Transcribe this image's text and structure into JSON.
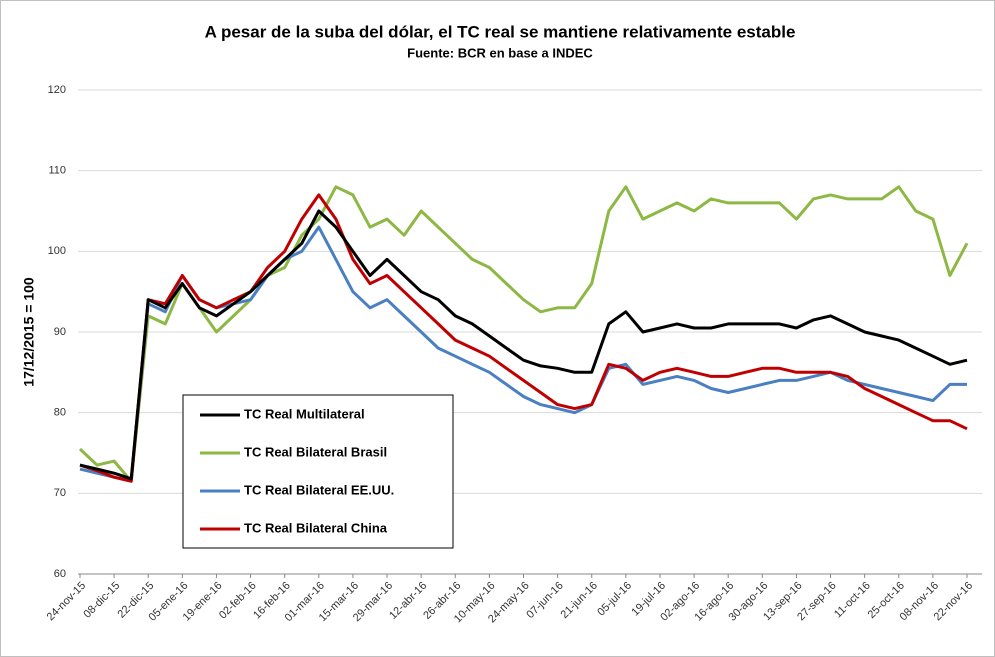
{
  "chart_data": {
    "type": "line",
    "title": "A pesar de la suba del dólar, el TC real se mantiene relativamente estable",
    "subtitle": "Fuente: BCR en base a INDEC",
    "y_label": "17/12/2015 = 100",
    "categories": [
      "24-nov-15",
      null,
      "08-dic-15",
      null,
      "22-dic-15",
      null,
      "05-ene-16",
      null,
      "19-ene-16",
      null,
      "02-feb-16",
      null,
      "16-feb-16",
      null,
      "01-mar-16",
      null,
      "15-mar-16",
      null,
      "29-mar-16",
      null,
      "12-abr-16",
      null,
      "26-abr-16",
      null,
      "10-may-16",
      null,
      "24-may-16",
      null,
      "07-jun-16",
      null,
      "21-jun-16",
      null,
      "05-jul-16",
      null,
      "19-jul-16",
      null,
      "02-ago-16",
      null,
      "16-ago-16",
      null,
      "30-ago-16",
      null,
      "13-sep-16",
      null,
      "27-sep-16",
      null,
      "11-oct-16",
      null,
      "25-oct-16",
      null,
      "08-nov-16",
      null,
      "22-nov-16"
    ],
    "series": [
      {
        "name": "TC Real Multilateral",
        "color": "#000000",
        "values": [
          73.5,
          73,
          72.5,
          71.8,
          94,
          93,
          96,
          93,
          92,
          93.5,
          95,
          97,
          99,
          101,
          105,
          103,
          100,
          97,
          99,
          97,
          95,
          94,
          92,
          91,
          89.5,
          88,
          86.5,
          85.8,
          85.5,
          85,
          85,
          91,
          92.5,
          90,
          90.5,
          91,
          90.5,
          90.5,
          91,
          91,
          91,
          91,
          90.5,
          91.5,
          92,
          91,
          90,
          89.5,
          89,
          88,
          87,
          86,
          86.5
        ]
      },
      {
        "name": "TC Real Bilateral Brasil",
        "color": "#8db843",
        "values": [
          75.5,
          73.5,
          74,
          71.5,
          92,
          91,
          96,
          93,
          90,
          92,
          94,
          97,
          98,
          102,
          104,
          108,
          107,
          103,
          104,
          102,
          105,
          103,
          101,
          99,
          98,
          96,
          94,
          92.5,
          93,
          93,
          96,
          105,
          108,
          104,
          105,
          106,
          105,
          106.5,
          106,
          106,
          106,
          106,
          104,
          106.5,
          107,
          106.5,
          106.5,
          106.5,
          108,
          105,
          104,
          97,
          101
        ]
      },
      {
        "name": "TC Real Bilateral EE.UU.",
        "color": "#4a7fc1",
        "values": [
          73,
          72.5,
          72,
          71.5,
          93.5,
          92.5,
          97,
          94,
          93,
          93.5,
          94,
          97,
          99,
          100,
          103,
          99,
          95,
          93,
          94,
          92,
          90,
          88,
          87,
          86,
          85,
          83.5,
          82,
          81,
          80.5,
          80,
          81,
          85.5,
          86,
          83.5,
          84,
          84.5,
          84,
          83,
          82.5,
          83,
          83.5,
          84,
          84,
          84.5,
          85,
          84,
          83.5,
          83,
          82.5,
          82,
          81.5,
          83.5,
          83.5
        ]
      },
      {
        "name": "TC Real Bilateral China",
        "color": "#c00000",
        "values": [
          73.5,
          72.8,
          72,
          71.5,
          94,
          93.5,
          97,
          94,
          93,
          94,
          95,
          98,
          100,
          104,
          107,
          104,
          99,
          96,
          97,
          95,
          93,
          91,
          89,
          88,
          87,
          85.5,
          84,
          82.5,
          81,
          80.5,
          81,
          86,
          85.5,
          84,
          85,
          85.5,
          85,
          84.5,
          84.5,
          85,
          85.5,
          85.5,
          85,
          85,
          85,
          84.5,
          83,
          82,
          81,
          80,
          79,
          79,
          78
        ]
      }
    ],
    "ylim": [
      60,
      120
    ],
    "yticks": [
      60,
      70,
      80,
      90,
      100,
      110,
      120
    ],
    "grid": true
  }
}
